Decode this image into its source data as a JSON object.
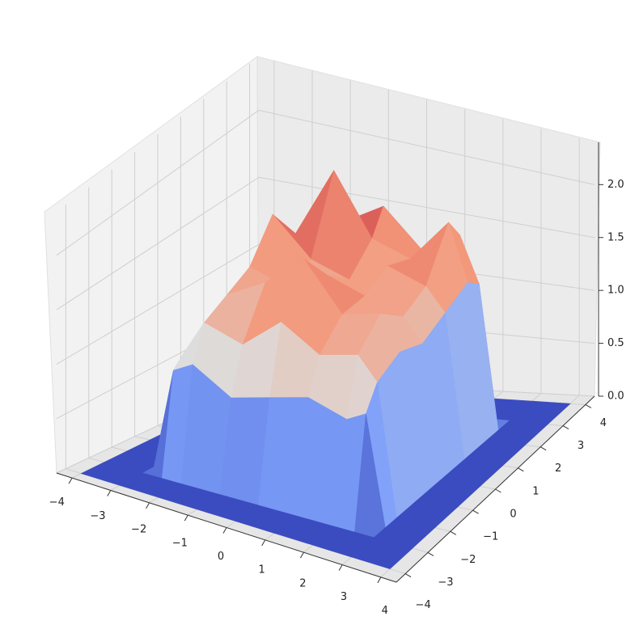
{
  "chart_data": {
    "type": "surface",
    "x": [
      -4,
      -3,
      -2.5,
      -2,
      -1,
      0,
      1,
      2,
      2.5,
      3,
      4
    ],
    "y": [
      -4,
      -3,
      -2.5,
      -2,
      -1,
      0,
      1,
      2,
      2.5,
      3,
      4
    ],
    "z": [
      [
        0,
        0,
        0,
        0,
        0,
        0,
        0,
        0,
        0,
        0,
        0
      ],
      [
        0,
        0,
        0,
        0,
        0,
        0,
        0,
        0,
        0,
        0,
        0
      ],
      [
        0,
        0,
        0.9,
        1.0,
        0.8,
        0.9,
        1.0,
        0.9,
        1.0,
        0,
        0
      ],
      [
        0,
        0,
        1.0,
        1.3,
        1.2,
        1.5,
        1.3,
        1.4,
        1.2,
        0,
        0
      ],
      [
        0,
        0,
        1.1,
        1.4,
        1.6,
        1.9,
        1.5,
        1.6,
        1.3,
        0,
        0
      ],
      [
        0,
        0,
        1.2,
        1.5,
        1.4,
        1.6,
        1.5,
        1.4,
        1.2,
        0,
        0
      ],
      [
        0,
        0,
        1.3,
        1.8,
        1.5,
        1.4,
        1.6,
        1.5,
        1.3,
        0,
        0
      ],
      [
        0,
        0,
        1.2,
        1.5,
        2.1,
        1.6,
        1.5,
        1.9,
        1.4,
        0,
        0
      ],
      [
        0,
        0,
        1.1,
        1.4,
        1.6,
        1.8,
        1.5,
        1.7,
        1.3,
        0,
        0
      ],
      [
        0,
        0,
        0,
        0,
        0,
        0,
        0,
        0,
        0,
        0,
        0
      ],
      [
        0,
        0,
        0,
        0,
        0,
        0,
        0,
        0,
        0,
        0,
        0
      ]
    ],
    "xlim": [
      -4.4,
      4.4
    ],
    "ylim": [
      -4.4,
      4.4
    ],
    "zlim": [
      0,
      2.4
    ],
    "xticks": [
      {
        "value": -4,
        "label": "−4"
      },
      {
        "value": -3,
        "label": "−3"
      },
      {
        "value": -2,
        "label": "−2"
      },
      {
        "value": -1,
        "label": "−1"
      },
      0,
      1,
      2,
      3,
      4
    ],
    "yticks": [
      {
        "value": -4,
        "label": "−4"
      },
      {
        "value": -3,
        "label": "−3"
      },
      {
        "value": -2,
        "label": "−2"
      },
      {
        "value": -1,
        "label": "−1"
      },
      0,
      1,
      2,
      3,
      4
    ],
    "zticks": [
      {
        "value": 0,
        "label": "0.0"
      },
      0.5,
      {
        "value": 1,
        "label": "1.0"
      },
      1.5,
      {
        "value": 2,
        "label": "2.0"
      }
    ],
    "colormap": "coolwarm",
    "grid": true
  }
}
